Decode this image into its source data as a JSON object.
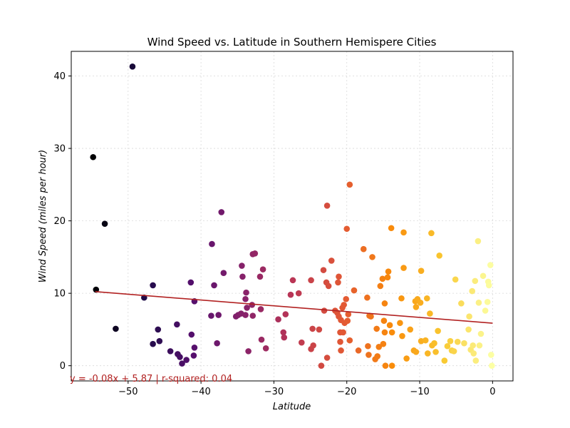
{
  "chart_data": {
    "type": "scatter",
    "title": "Wind Speed vs. Latitude in Southern Hemispere Cities",
    "xlabel": "Latitude",
    "ylabel": "Wind Speed (miles per hour)",
    "xlim": [
      -57.8,
      2.8
    ],
    "ylim": [
      -2.1,
      43.4
    ],
    "xticks": [
      -50,
      -40,
      -30,
      -20,
      -10,
      0
    ],
    "yticks": [
      0,
      10,
      20,
      30,
      40
    ],
    "xtick_labels": [
      "−50",
      "−40",
      "−30",
      "−20",
      "−10",
      "0"
    ],
    "ytick_labels": [
      "0",
      "10",
      "20",
      "30",
      "40"
    ],
    "grid": true,
    "colormap": "inferno (colored by latitude)",
    "regression": {
      "slope": -0.08,
      "intercept": 5.87,
      "color": "#b22222",
      "x_range": [
        -54.5,
        0
      ]
    },
    "annotation": "y = -0.08x + 5.87 | r-squared: 0.04",
    "points": [
      [
        -49.4,
        41.3
      ],
      [
        -54.8,
        28.8
      ],
      [
        -53.2,
        19.6
      ],
      [
        -54.4,
        10.5
      ],
      [
        -51.7,
        5.1
      ],
      [
        -47.8,
        9.4
      ],
      [
        -46.6,
        11.1
      ],
      [
        -46.6,
        3.0
      ],
      [
        -45.9,
        5.0
      ],
      [
        -45.7,
        3.4
      ],
      [
        -44.2,
        2.0
      ],
      [
        -43.3,
        5.7
      ],
      [
        -43.2,
        1.6
      ],
      [
        -42.9,
        1.2
      ],
      [
        -42.6,
        0.3
      ],
      [
        -42.0,
        0.8
      ],
      [
        -41.4,
        11.5
      ],
      [
        -41.3,
        4.3
      ],
      [
        -41.0,
        1.4
      ],
      [
        -40.9,
        2.5
      ],
      [
        -40.9,
        8.9
      ],
      [
        -38.6,
        6.9
      ],
      [
        -38.5,
        16.8
      ],
      [
        -38.2,
        11.1
      ],
      [
        -37.8,
        3.1
      ],
      [
        -37.6,
        7.0
      ],
      [
        -37.2,
        21.2
      ],
      [
        -36.9,
        12.8
      ],
      [
        -35.2,
        6.8
      ],
      [
        -34.9,
        7.0
      ],
      [
        -34.5,
        7.2
      ],
      [
        -34.4,
        13.8
      ],
      [
        -34.3,
        12.3
      ],
      [
        -33.9,
        9.2
      ],
      [
        -33.9,
        7.0
      ],
      [
        -33.8,
        10.1
      ],
      [
        -33.7,
        8.0
      ],
      [
        -33.5,
        2.0
      ],
      [
        -33.0,
        8.4
      ],
      [
        -32.9,
        6.9
      ],
      [
        -32.9,
        15.4
      ],
      [
        -32.6,
        15.5
      ],
      [
        -31.9,
        12.3
      ],
      [
        -31.8,
        7.8
      ],
      [
        -31.7,
        3.6
      ],
      [
        -31.5,
        13.3
      ],
      [
        -31.1,
        2.4
      ],
      [
        -29.4,
        6.4
      ],
      [
        -28.7,
        4.6
      ],
      [
        -28.6,
        3.9
      ],
      [
        -28.4,
        7.1
      ],
      [
        -27.7,
        9.8
      ],
      [
        -27.4,
        11.8
      ],
      [
        -26.6,
        10.0
      ],
      [
        -26.2,
        3.2
      ],
      [
        -24.9,
        11.8
      ],
      [
        -24.9,
        2.3
      ],
      [
        -24.7,
        5.1
      ],
      [
        -24.6,
        2.8
      ],
      [
        -23.8,
        5.0
      ],
      [
        -23.5,
        0.0
      ],
      [
        -23.2,
        13.2
      ],
      [
        -23.1,
        7.6
      ],
      [
        -22.8,
        11.5
      ],
      [
        -22.7,
        22.1
      ],
      [
        -22.7,
        1.1
      ],
      [
        -22.5,
        11.0
      ],
      [
        -22.1,
        14.5
      ],
      [
        -21.6,
        7.6
      ],
      [
        -21.3,
        7.3
      ],
      [
        -21.2,
        11.5
      ],
      [
        -21.1,
        12.3
      ],
      [
        -21.1,
        6.8
      ],
      [
        -20.9,
        3.3
      ],
      [
        -20.9,
        4.6
      ],
      [
        -20.8,
        6.3
      ],
      [
        -20.8,
        2.1
      ],
      [
        -20.6,
        8.0
      ],
      [
        -20.5,
        4.6
      ],
      [
        -20.4,
        8.4
      ],
      [
        -20.3,
        5.9
      ],
      [
        -20.1,
        9.2
      ],
      [
        -20.0,
        18.9
      ],
      [
        -19.9,
        6.2
      ],
      [
        -19.8,
        7.1
      ],
      [
        -19.6,
        25.0
      ],
      [
        -19.6,
        3.5
      ],
      [
        -19.0,
        10.4
      ],
      [
        -18.4,
        2.1
      ],
      [
        -17.7,
        16.1
      ],
      [
        -17.2,
        9.4
      ],
      [
        -17.1,
        2.7
      ],
      [
        -17.0,
        1.5
      ],
      [
        -16.9,
        6.9
      ],
      [
        -16.7,
        6.8
      ],
      [
        -16.5,
        15.0
      ],
      [
        -16.1,
        0.9
      ],
      [
        -15.9,
        5.1
      ],
      [
        -15.8,
        1.3
      ],
      [
        -15.6,
        2.6
      ],
      [
        -15.4,
        11.0
      ],
      [
        -15.1,
        12.0
      ],
      [
        -15.0,
        3.0
      ],
      [
        -14.9,
        6.2
      ],
      [
        -14.8,
        8.6
      ],
      [
        -14.8,
        4.6
      ],
      [
        -14.7,
        0.0
      ],
      [
        -14.4,
        12.2
      ],
      [
        -14.3,
        13.0
      ],
      [
        -14.1,
        5.6
      ],
      [
        -13.9,
        19.0
      ],
      [
        -13.8,
        4.6
      ],
      [
        -13.8,
        0.0
      ],
      [
        -12.7,
        5.9
      ],
      [
        -12.5,
        9.3
      ],
      [
        -12.4,
        4.1
      ],
      [
        -12.2,
        13.5
      ],
      [
        -12.2,
        18.4
      ],
      [
        -11.8,
        1.0
      ],
      [
        -11.3,
        5.0
      ],
      [
        -10.8,
        2.1
      ],
      [
        -10.6,
        8.9
      ],
      [
        -10.5,
        1.9
      ],
      [
        -10.5,
        8.1
      ],
      [
        -10.3,
        9.2
      ],
      [
        -9.9,
        8.7
      ],
      [
        -9.8,
        13.1
      ],
      [
        -9.8,
        3.4
      ],
      [
        -9.2,
        3.5
      ],
      [
        -9.0,
        9.3
      ],
      [
        -8.9,
        1.7
      ],
      [
        -8.6,
        7.2
      ],
      [
        -8.4,
        18.3
      ],
      [
        -8.3,
        2.8
      ],
      [
        -8.0,
        3.1
      ],
      [
        -7.8,
        1.9
      ],
      [
        -7.5,
        4.8
      ],
      [
        -7.3,
        15.2
      ],
      [
        -6.6,
        0.7
      ],
      [
        -6.2,
        2.7
      ],
      [
        -5.8,
        3.4
      ],
      [
        -5.6,
        2.1
      ],
      [
        -5.3,
        2.0
      ],
      [
        -5.1,
        11.9
      ],
      [
        -4.8,
        3.3
      ],
      [
        -4.3,
        8.6
      ],
      [
        -3.9,
        3.1
      ],
      [
        -3.3,
        5.0
      ],
      [
        -3.2,
        6.8
      ],
      [
        -3.0,
        2.2
      ],
      [
        -2.8,
        10.3
      ],
      [
        -2.7,
        2.8
      ],
      [
        -2.6,
        1.7
      ],
      [
        -2.4,
        11.7
      ],
      [
        -2.3,
        0.7
      ],
      [
        -2.0,
        17.2
      ],
      [
        -1.9,
        8.7
      ],
      [
        -1.8,
        2.8
      ],
      [
        -1.6,
        4.4
      ],
      [
        -1.3,
        12.4
      ],
      [
        -1.0,
        7.6
      ],
      [
        -0.7,
        8.8
      ],
      [
        -0.6,
        11.6
      ],
      [
        -0.5,
        11.1
      ],
      [
        -0.3,
        13.9
      ],
      [
        -0.2,
        1.5
      ],
      [
        -0.1,
        0.0
      ]
    ]
  }
}
